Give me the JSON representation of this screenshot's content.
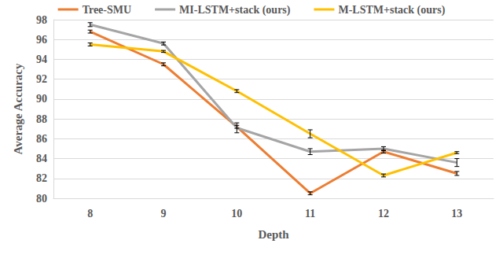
{
  "chart_data": {
    "type": "line",
    "x_label": "Depth",
    "y_label": "Average Accuracy",
    "categories": [
      8,
      9,
      10,
      11,
      12,
      13
    ],
    "ylim": [
      80,
      98
    ],
    "yticks": [
      80,
      82,
      84,
      86,
      88,
      90,
      92,
      94,
      96,
      98
    ],
    "grid": true,
    "legend": "top",
    "series": [
      {
        "name": "Tree-SMU",
        "color": "#ed7d31",
        "marker": "none",
        "line_style": "solid",
        "values": [
          96.8,
          93.5,
          87.2,
          80.5,
          84.7,
          82.5
        ],
        "errors": [
          0.15,
          0.15,
          0.15,
          0.15,
          0.15,
          0.2
        ]
      },
      {
        "name": "MI-LSTM+stack (ours)",
        "color": "#a5a5a5",
        "marker": "none",
        "line_style": "solid",
        "values": [
          97.5,
          95.6,
          87.1,
          84.7,
          85.0,
          83.6
        ],
        "errors": [
          0.2,
          0.15,
          0.5,
          0.3,
          0.2,
          0.4
        ]
      },
      {
        "name": "M-LSTM+stack (ours)",
        "color": "#ffc000",
        "marker": "none",
        "line_style": "solid",
        "values": [
          95.5,
          94.8,
          90.8,
          86.5,
          82.3,
          84.6
        ],
        "errors": [
          0.15,
          0.1,
          0.15,
          0.4,
          0.15,
          0.1
        ]
      }
    ]
  }
}
